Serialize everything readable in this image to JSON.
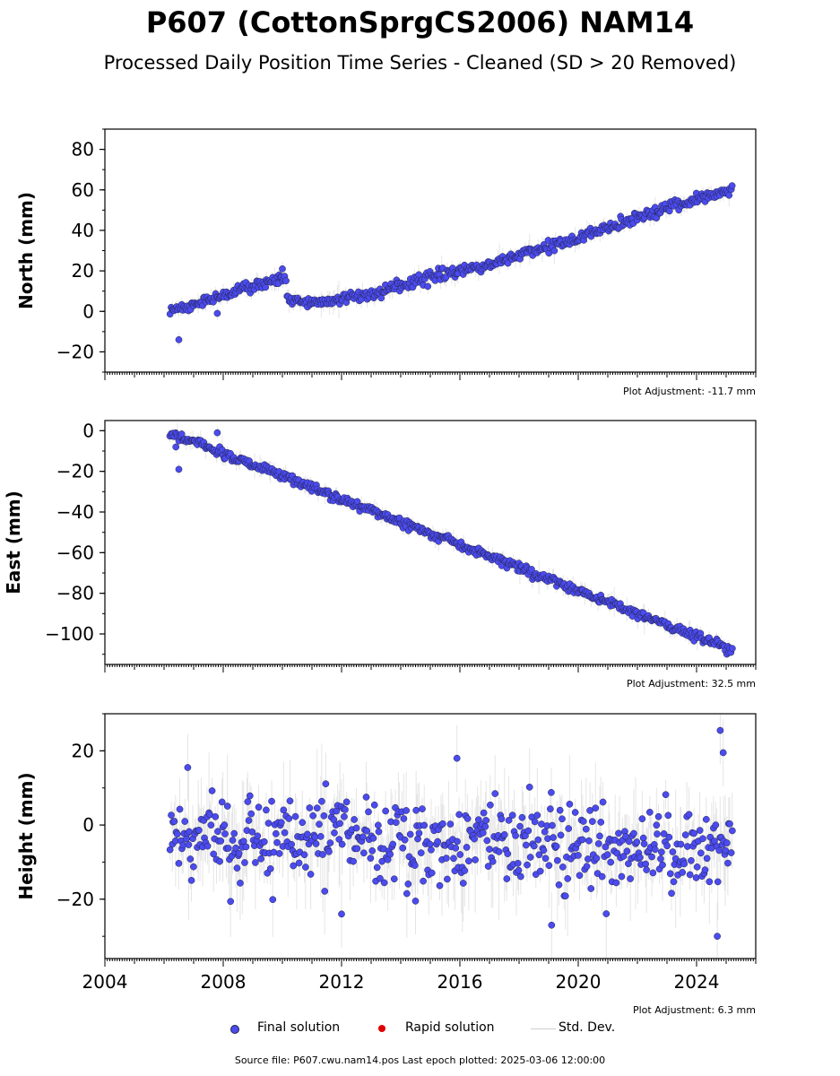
{
  "title": "P607 (CottonSprgCS2006) NAM14",
  "subtitle": "Processed Daily Position Time Series - Cleaned (SD > 20 Removed)",
  "legend": {
    "final": "Final solution",
    "rapid": "Rapid solution",
    "std": "Std. Dev."
  },
  "source": "Source file: P607.cwu.nam14.pos  Last epoch plotted: 2025-03-06 12:00:00",
  "colors": {
    "final": "#4b4bf0",
    "final_edge": "#222244",
    "rapid": "#e00000",
    "std": "#cfcfcf"
  },
  "chart_data": [
    {
      "type": "scatter",
      "ylabel": "North (mm)",
      "adjustment": "Plot Adjustment: -11.7 mm",
      "xlim": [
        2004,
        2026
      ],
      "ylim": [
        -30,
        90
      ],
      "yticks": [
        -20,
        0,
        20,
        40,
        60,
        80
      ],
      "x_tick_labels": [],
      "trend": [
        {
          "x": 2006.2,
          "y": 0
        },
        {
          "x": 2010.1,
          "y": 17
        },
        {
          "x": 2010.2,
          "y": 5
        },
        {
          "x": 2011.5,
          "y": 5
        },
        {
          "x": 2013.0,
          "y": 9
        },
        {
          "x": 2015.0,
          "y": 17
        },
        {
          "x": 2017.0,
          "y": 23
        },
        {
          "x": 2019.0,
          "y": 32
        },
        {
          "x": 2020.3,
          "y": 38
        },
        {
          "x": 2022.0,
          "y": 46
        },
        {
          "x": 2023.5,
          "y": 53
        },
        {
          "x": 2025.2,
          "y": 60
        }
      ],
      "noise_sd": 1.3,
      "std_sd": 2.2,
      "outliers": [
        {
          "x": 2006.5,
          "y": -14
        },
        {
          "x": 2007.8,
          "y": -1
        },
        {
          "x": 2010.0,
          "y": 21
        }
      ]
    },
    {
      "type": "scatter",
      "ylabel": "East (mm)",
      "adjustment": "Plot Adjustment: 32.5 mm",
      "xlim": [
        2004,
        2026
      ],
      "ylim": [
        -115,
        5
      ],
      "yticks": [
        -100,
        -80,
        -60,
        -40,
        -20,
        0
      ],
      "x_tick_labels": [],
      "trend": [
        {
          "x": 2006.2,
          "y": -1
        },
        {
          "x": 2025.2,
          "y": -108
        }
      ],
      "noise_sd": 1.1,
      "std_sd": 2.0,
      "outliers": [
        {
          "x": 2006.5,
          "y": -19
        },
        {
          "x": 2006.4,
          "y": -8
        },
        {
          "x": 2007.8,
          "y": -1
        }
      ]
    },
    {
      "type": "scatter",
      "ylabel": "Height (mm)",
      "adjustment": "Plot Adjustment: 6.3 mm",
      "xlim": [
        2004,
        2026
      ],
      "ylim": [
        -36,
        30
      ],
      "yticks": [
        -20,
        0,
        20
      ],
      "x_tick_labels": [
        "2004",
        "2008",
        "2012",
        "2016",
        "2020",
        "2024"
      ],
      "trend": [
        {
          "x": 2006.2,
          "y": -3
        },
        {
          "x": 2025.2,
          "y": -6
        }
      ],
      "noise_sd": 5.5,
      "std_sd": 6.0,
      "outliers": [
        {
          "x": 2024.8,
          "y": 25.5
        },
        {
          "x": 2024.9,
          "y": 19.5
        },
        {
          "x": 2024.7,
          "y": -30
        },
        {
          "x": 2019.1,
          "y": -27
        },
        {
          "x": 2015.9,
          "y": 18
        },
        {
          "x": 2006.8,
          "y": 15.5
        },
        {
          "x": 2014.5,
          "y": -20.5
        },
        {
          "x": 2012.0,
          "y": -24
        }
      ]
    }
  ]
}
